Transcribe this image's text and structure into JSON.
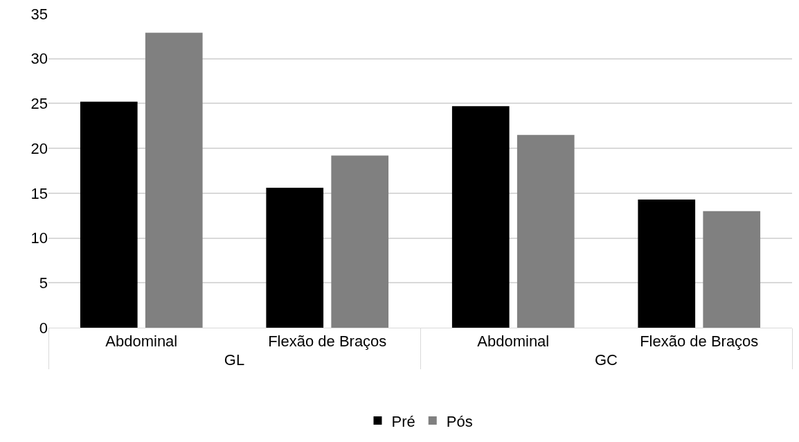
{
  "chart_data": {
    "type": "bar",
    "categories": [
      "Abdominal",
      "Flexão de Braços",
      "Abdominal",
      "Flexão de Braços"
    ],
    "annotations": [
      "GL",
      "GC"
    ],
    "series": [
      {
        "name": "Pré",
        "color": "#000000",
        "values": [
          25.2,
          15.6,
          24.7,
          14.3
        ]
      },
      {
        "name": "Pós",
        "color": "#808080",
        "values": [
          32.9,
          19.2,
          21.5,
          13.0
        ]
      }
    ],
    "ylim": [
      0,
      35
    ],
    "yticks": [
      0,
      5,
      10,
      15,
      20,
      25,
      30,
      35
    ],
    "grid": "y",
    "legend": "bottom"
  }
}
